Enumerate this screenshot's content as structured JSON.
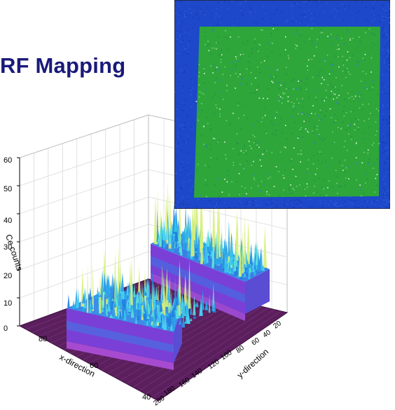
{
  "title": "RF Mapping",
  "chart_data": [
    {
      "type": "surface3d",
      "zlabel": "Ce counts",
      "xlabel": "x-direction",
      "ylabel": "y-direction",
      "zlim": [
        0,
        60
      ],
      "z_ticks": [
        "0",
        "10",
        "20",
        "30",
        "40",
        "50",
        "60"
      ],
      "x_ticks": [
        "80",
        "60",
        "40"
      ],
      "y_ticks": [
        "20",
        "40",
        "60",
        "80",
        "100",
        "120",
        "140",
        "160",
        "180",
        "200"
      ],
      "grid": true,
      "regions": [
        {
          "name": "",
          "baseline_counts": 15,
          "peak_counts": 45
        },
        {
          "name": "",
          "baseline_counts": 15,
          "peak_counts": 55
        }
      ],
      "background_counts": 1
    },
    {
      "type": "heatmap",
      "colors": {
        "background": "#1d48c9",
        "square": "#2ea63a",
        "border": "#1a3aa8"
      }
    }
  ]
}
